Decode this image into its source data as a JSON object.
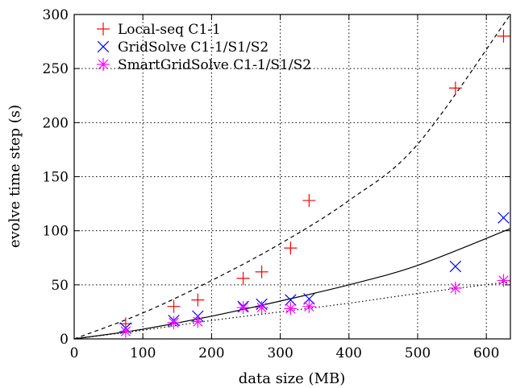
{
  "chart_data": {
    "type": "scatter",
    "xlabel": "data size (MB)",
    "ylabel": "evolve time step (s)",
    "xlim": [
      0,
      635
    ],
    "ylim": [
      0,
      300
    ],
    "xticks": [
      0,
      100,
      200,
      300,
      400,
      500,
      600
    ],
    "yticks": [
      0,
      50,
      100,
      150,
      200,
      250,
      300
    ],
    "grid": true,
    "grid_style": "dotted",
    "legend_position": "top-left",
    "series": [
      {
        "name": "Local-seq C1-1",
        "marker": "plus",
        "color": "#ff0000",
        "points": [
          [
            75,
            14
          ],
          [
            145,
            30
          ],
          [
            180,
            36
          ],
          [
            246,
            56
          ],
          [
            273,
            62
          ],
          [
            315,
            84
          ],
          [
            342,
            128
          ],
          [
            555,
            232
          ],
          [
            625,
            280
          ]
        ]
      },
      {
        "name": "GridSolve C1-1/S1/S2",
        "marker": "cross",
        "color": "#0000ff",
        "points": [
          [
            75,
            10
          ],
          [
            145,
            17
          ],
          [
            180,
            21
          ],
          [
            246,
            30
          ],
          [
            273,
            32
          ],
          [
            315,
            36
          ],
          [
            342,
            37
          ],
          [
            555,
            67
          ],
          [
            625,
            112
          ]
        ]
      },
      {
        "name": "SmartGridSolve C1-1/S1/S2",
        "marker": "asterisk",
        "color": "#ff00ff",
        "points": [
          [
            75,
            7
          ],
          [
            145,
            15
          ],
          [
            180,
            16
          ],
          [
            246,
            29
          ],
          [
            273,
            29
          ],
          [
            315,
            28
          ],
          [
            342,
            30
          ],
          [
            555,
            47
          ],
          [
            625,
            54
          ]
        ]
      }
    ],
    "fit_curves": [
      {
        "style": "dashed",
        "color": "#000000",
        "points": [
          [
            0,
            0
          ],
          [
            100,
            24
          ],
          [
            200,
            54
          ],
          [
            300,
            88
          ],
          [
            400,
            128
          ],
          [
            500,
            180
          ],
          [
            635,
            300
          ]
        ]
      },
      {
        "style": "solid",
        "color": "#000000",
        "points": [
          [
            0,
            0
          ],
          [
            100,
            9
          ],
          [
            200,
            21
          ],
          [
            300,
            35
          ],
          [
            400,
            50
          ],
          [
            500,
            68
          ],
          [
            635,
            102
          ]
        ]
      },
      {
        "style": "dotted",
        "color": "#000000",
        "points": [
          [
            0,
            0
          ],
          [
            100,
            8
          ],
          [
            200,
            17
          ],
          [
            300,
            25
          ],
          [
            400,
            33
          ],
          [
            500,
            42
          ],
          [
            635,
            53
          ]
        ]
      }
    ]
  }
}
